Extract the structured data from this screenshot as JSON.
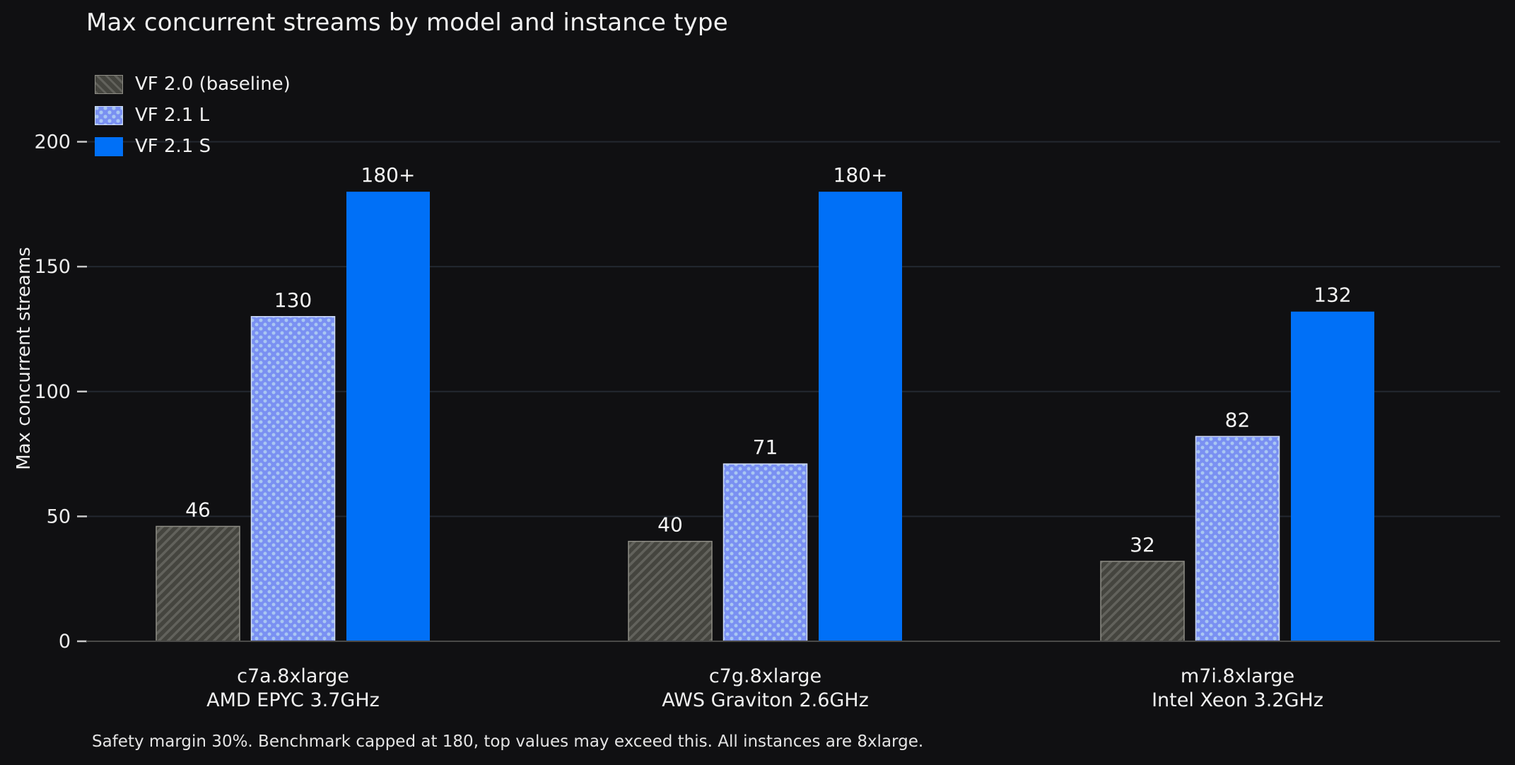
{
  "chart_data": {
    "type": "bar",
    "title": "Max concurrent streams by model and instance type",
    "ylabel": "Max concurrent streams",
    "xlabel": "",
    "footnote": "Safety margin 30%. Benchmark capped at 180, top values may exceed this. All instances are 8xlarge.",
    "categories": [
      {
        "line1": "c7a.8xlarge",
        "line2": "AMD EPYC 3.7GHz"
      },
      {
        "line1": "c7g.8xlarge",
        "line2": "AWS Graviton 2.6GHz"
      },
      {
        "line1": "m7i.8xlarge",
        "line2": "Intel Xeon 3.2GHz"
      }
    ],
    "series": [
      {
        "name": "VF 2.0 (baseline)",
        "pattern": "hatch",
        "values": [
          46,
          40,
          32
        ],
        "value_labels": [
          "46",
          "40",
          "32"
        ]
      },
      {
        "name": "VF 2.1 L",
        "pattern": "dots",
        "values": [
          130,
          71,
          82
        ],
        "value_labels": [
          "130",
          "71",
          "82"
        ]
      },
      {
        "name": "VF 2.1 S",
        "pattern": "solid",
        "values": [
          180,
          180,
          132
        ],
        "value_labels": [
          "180+",
          "180+",
          "132"
        ]
      }
    ],
    "yticks": [
      0,
      50,
      100,
      150,
      200
    ],
    "ylim": [
      0,
      212
    ],
    "grid": "horizontal",
    "legend_position": "upper-left",
    "colors": {
      "background": "#101012",
      "gridline": "#232830",
      "axis_line": "#4a4a48",
      "tick_mark": "#c9c9c9",
      "tick_label": "#ececec",
      "text": "#f2f2f2",
      "value_label": "#f5f5f5",
      "category_label": "#f0f0f0",
      "gray_fill": "#45453f",
      "gray_hatch": "#62625c",
      "gray_edge": "#8e8d85",
      "lightblue_fill": "#7a90f2",
      "lightblue_dot": "#a9c7f2",
      "lightblue_edge": "#cfdcf9",
      "blue": "#0070f7"
    }
  }
}
